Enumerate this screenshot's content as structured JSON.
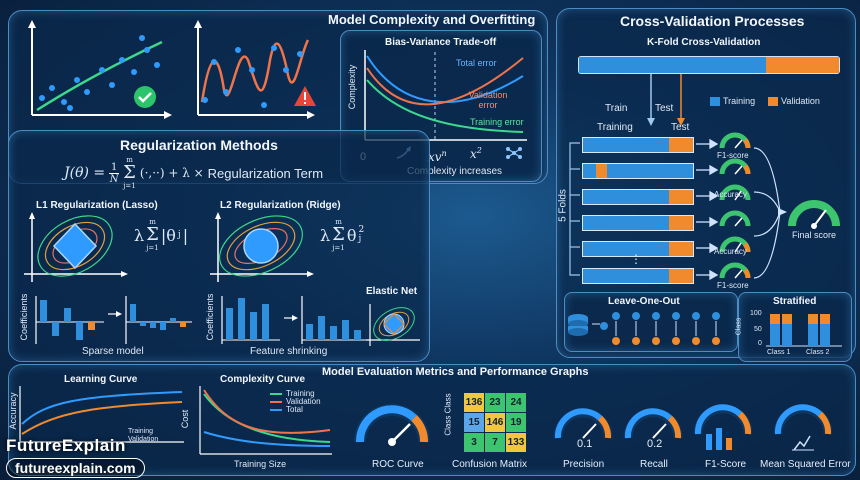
{
  "overfit": {
    "title": "Model Complexity and Overfitting",
    "bv_title": "Bias-Variance Trade-off",
    "ylabel": "Complexity",
    "total": "Total error",
    "validation": "Validation error",
    "training": "Training error",
    "x0": "0",
    "xlabel": "Complexity increases",
    "sym1": "xv",
    "sym1_sup": "n",
    "sym2": "x",
    "sym2_sup": "2"
  },
  "cv": {
    "title": "Cross-Validation Processes",
    "kfold": "K-Fold Cross-Validation",
    "legend_training": "Training",
    "legend_validation": "Validation",
    "train": "Train",
    "test": "Test",
    "train2": "Training",
    "test2": "Test",
    "folds": "5 Folds",
    "f1a": "F1-score",
    "acc1": "Accuracy",
    "acc2": "Accuracy",
    "f1b": "F1-score",
    "final": "Final score",
    "loo": "Leave-One-Out",
    "stratified": "Stratified",
    "class_axis": "Class",
    "tick100": "100",
    "tick50": "50",
    "tick0": "0",
    "class1": "Class 1",
    "class2": "Class 2",
    "colors": {
      "training": "#2f8fdc",
      "validation": "#f08a2c"
    }
  },
  "reg": {
    "title": "Regularization Methods",
    "formula_lhs": "J(θ) =",
    "frac_num": "1",
    "frac_den": "N",
    "sum_top": "m",
    "sum_bot": "j=1",
    "formula_mid": "(·,··) + λ ×",
    "formula_term": "Regularization Term",
    "l1": "L1 Regularization (Lasso)",
    "l2": "L2 Regularization (Ridge)",
    "l1_lambda": "λ",
    "l1_expr": "|θ",
    "l1_sub": "j",
    "l1_close": "|",
    "l2_lambda": "λ",
    "l2_expr": "θ",
    "l2_sub": "j",
    "l2_sup": "2",
    "coeff": "Coefficients",
    "sparse": "Sparse model",
    "shrink": "Feature shrinking",
    "elastic": "Elastic Net"
  },
  "eval": {
    "title": "Model Evaluation Metrics and Performance Graphs",
    "learning": "Learning Curve",
    "acc_axis": "Accuracy",
    "training_small": "Training",
    "validation_small": "Validation",
    "complexity": "Complexity Curve",
    "cost": "Cost",
    "leg_training": "Training",
    "leg_validation": "Validation",
    "leg_total": "Total",
    "training_size": "Training Size",
    "roc": "ROC Curve",
    "cm_axis": "Class Class",
    "cm_label": "Confusion Matrix",
    "cm": [
      [
        "136",
        "23",
        "24"
      ],
      [
        "15",
        "146",
        "19"
      ],
      [
        "3",
        "7",
        "133"
      ]
    ],
    "precision": "Precision",
    "precision_val": "0.1",
    "recall": "Recall",
    "recall_val": "0.2",
    "f1": "F1-Score",
    "mse": "Mean Squared Error"
  },
  "brand": {
    "name": "FutureExplain",
    "url": "futureexplain.com"
  }
}
